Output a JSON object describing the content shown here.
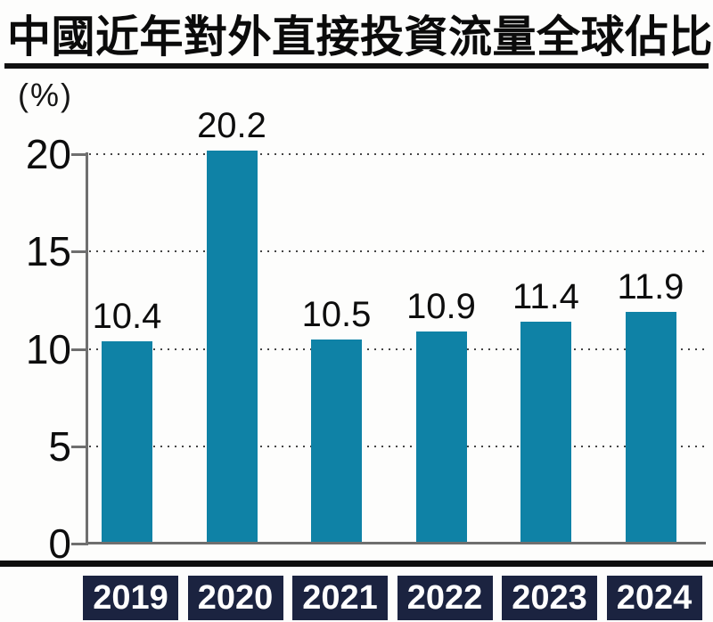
{
  "title": "中國近年對外直接投資流量全球佔比",
  "unit_label": "(%)",
  "chart_data": {
    "type": "bar",
    "title": "中國近年對外直接投資流量全球佔比",
    "xlabel": "",
    "ylabel": "(%)",
    "categories": [
      "2019",
      "2020",
      "2021",
      "2022",
      "2023",
      "2024"
    ],
    "values": [
      10.4,
      20.2,
      10.5,
      10.9,
      11.4,
      11.9
    ],
    "value_labels": [
      "10.4",
      "20.2",
      "10.5",
      "10.9",
      "11.4",
      "11.9"
    ],
    "ylim": [
      0,
      20
    ],
    "yticks": [
      0,
      5,
      10,
      15,
      20
    ],
    "ytick_labels": [
      "0",
      "5",
      "10",
      "15",
      "20"
    ],
    "grid": "dotted-horizontal",
    "legend": "none",
    "colors": {
      "bar": "#0f82a6",
      "year_box_bg": "#1b2340",
      "year_box_text": "#ffffff",
      "axis": "#6f6f6f",
      "text": "#0d0d0d",
      "rule": "#101010",
      "background": "#fdfdfc"
    }
  }
}
